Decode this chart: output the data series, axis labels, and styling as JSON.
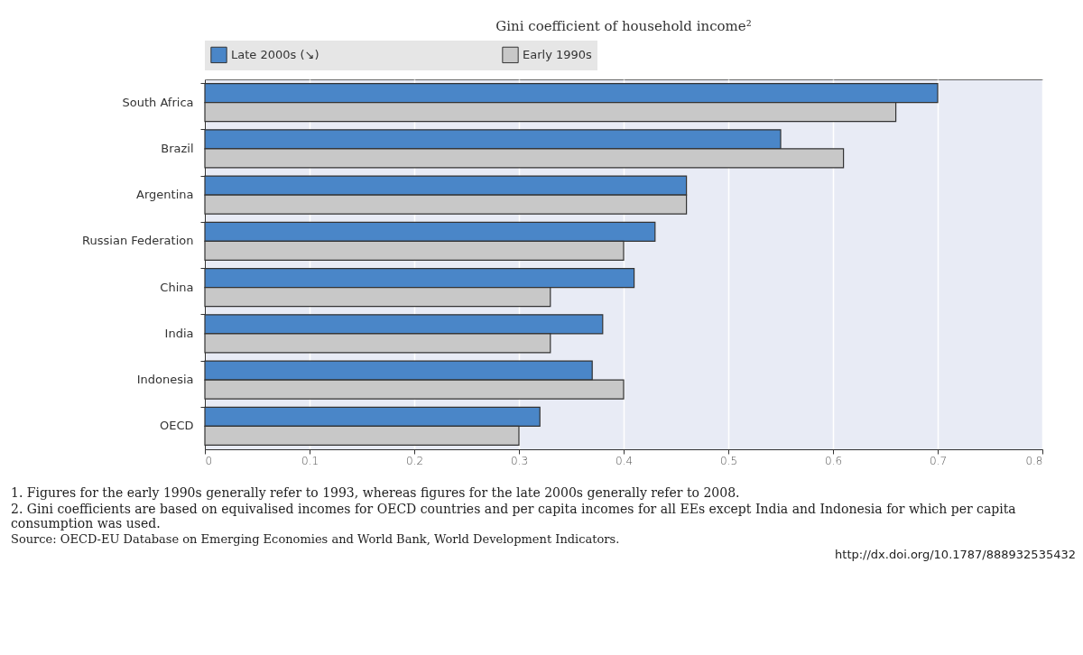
{
  "chart_data": {
    "type": "bar",
    "orientation": "horizontal",
    "title": "Gini coefficient of household income²",
    "categories": [
      "South Africa",
      "Brazil",
      "Argentina",
      "Russian Federation",
      "China",
      "India",
      "Indonesia",
      "OECD"
    ],
    "series": [
      {
        "name": "Late 2000s (↘)",
        "color": "#4a86c8",
        "values": [
          0.7,
          0.55,
          0.46,
          0.43,
          0.41,
          0.38,
          0.37,
          0.32
        ]
      },
      {
        "name": "Early 1990s",
        "color": "#c8c8c8",
        "values": [
          0.66,
          0.61,
          0.46,
          0.4,
          0.33,
          0.33,
          0.4,
          0.3
        ]
      }
    ],
    "xlim": [
      0,
      0.8
    ],
    "xticks": [
      0,
      0.1,
      0.2,
      0.3,
      0.4,
      0.5,
      0.6,
      0.7,
      0.8
    ],
    "grid": "x",
    "legend": "top",
    "annotations": [
      "1.  Figures for the early 1990s generally refer to 1993, whereas figures for the late 2000s generally refer to 2008.",
      "2.  Gini coefficients are based on equivalised incomes for OECD countries and per capita incomes for all EEs except India and Indonesia for which per capita consumption was used.",
      "Source:  OECD-EU Database on Emerging Economies and World Bank, World Development Indicators.",
      "http://dx.doi.org/10.1787/888932535432"
    ]
  }
}
